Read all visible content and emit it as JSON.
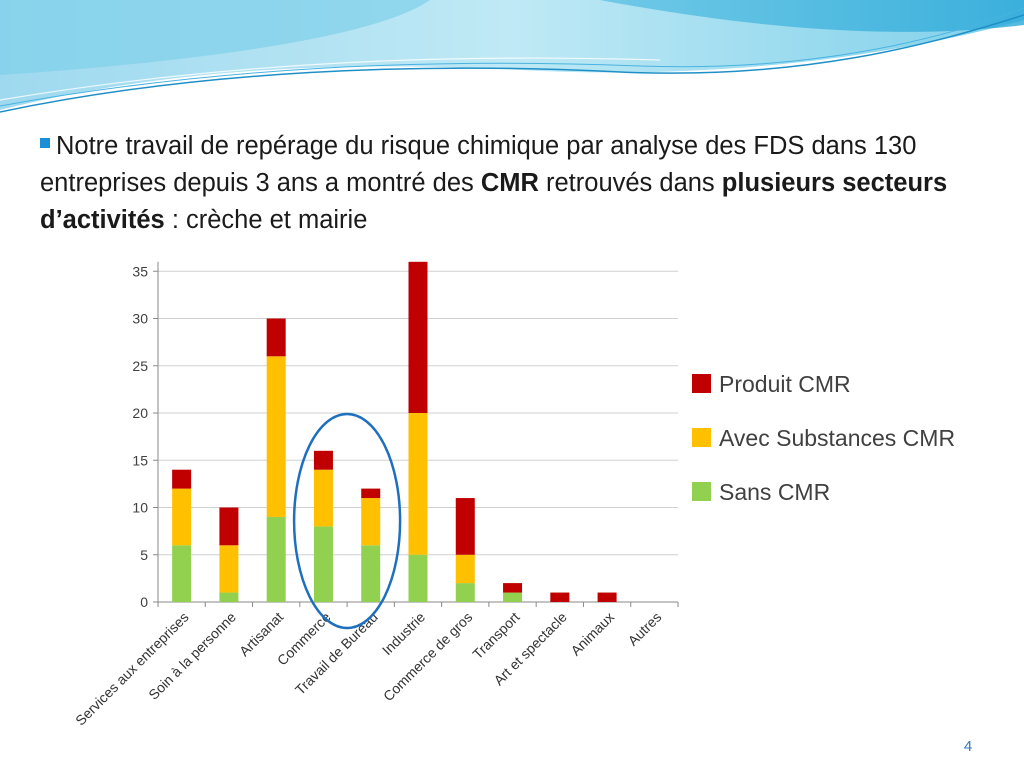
{
  "slide": {
    "bullet_text": {
      "part1": "Notre travail de repérage du risque chimique par analyse des FDS dans 130 entreprises depuis 3 ans a montré des ",
      "bold1": "CMR",
      "part2": " retrouvés dans ",
      "bold2": "plusieurs secteurs d’activités",
      "part3": " : crèche et mairie"
    },
    "page_number": "4"
  },
  "colors": {
    "sans_cmr": "#92d050",
    "avec_substances": "#ffc000",
    "produit_cmr": "#c00000",
    "highlight_ellipse": "#1f6fbf",
    "bullet": "#1a8fd6"
  },
  "chart_data": {
    "type": "bar",
    "stacked": true,
    "categories": [
      "Services aux entreprises",
      "Soin à la personne",
      "Artisanat",
      "Commerce",
      "Travail de Bureau",
      "Industrie",
      "Commerce de gros",
      "Transport",
      "Art et spectacle",
      "Animaux",
      "Autres"
    ],
    "series": [
      {
        "name": "Sans CMR",
        "color": "#92d050",
        "values": [
          6,
          1,
          9,
          8,
          6,
          5,
          2,
          1,
          0,
          0,
          0
        ]
      },
      {
        "name": "Avec Substances CMR",
        "color": "#ffc000",
        "values": [
          6,
          5,
          17,
          6,
          5,
          15,
          3,
          0,
          0,
          0,
          0
        ]
      },
      {
        "name": "Produit CMR",
        "color": "#c00000",
        "values": [
          2,
          4,
          4,
          2,
          1,
          16,
          6,
          1,
          1,
          1,
          0
        ]
      }
    ],
    "legend_order": [
      "Produit CMR",
      "Avec Substances CMR",
      "Sans CMR"
    ],
    "legend_position": "right",
    "ylim": [
      0,
      36
    ],
    "yticks": [
      0,
      5,
      10,
      15,
      20,
      25,
      30,
      35
    ],
    "grid": true,
    "highlight": {
      "categories": [
        "Commerce",
        "Travail de Bureau"
      ],
      "shape": "ellipse"
    }
  }
}
